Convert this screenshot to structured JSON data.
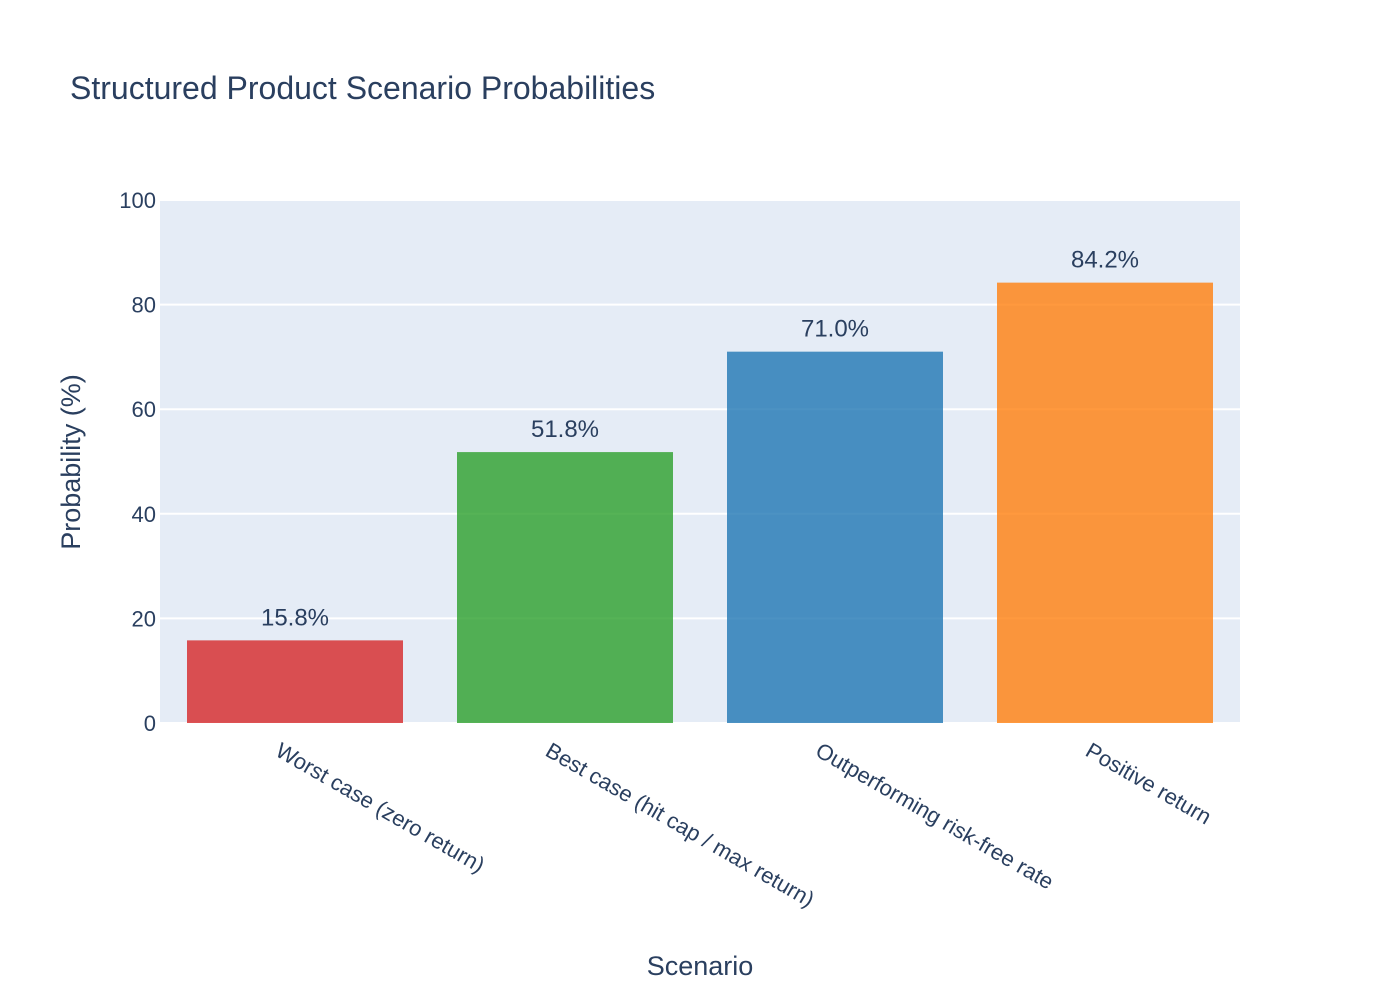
{
  "chart_data": {
    "type": "bar",
    "title": "Structured Product Scenario Probabilities",
    "xlabel": "Scenario",
    "ylabel": "Probability (%)",
    "ylim": [
      0,
      100
    ],
    "yticks": [
      0,
      20,
      40,
      60,
      80,
      100
    ],
    "grid": true,
    "categories": [
      "Worst case (zero return)",
      "Best case (hit cap / max return)",
      "Outperforming risk-free rate",
      "Positive return"
    ],
    "values": [
      15.8,
      51.8,
      71.0,
      84.2
    ],
    "data_labels": [
      "15.8%",
      "51.8%",
      "71.0%",
      "84.2%"
    ],
    "colors": [
      "#d62728",
      "#2ca02c",
      "#1f77b4",
      "#ff7f0e"
    ],
    "plot_background": "#e5ecf6",
    "text_color": "#2a3f5f"
  }
}
